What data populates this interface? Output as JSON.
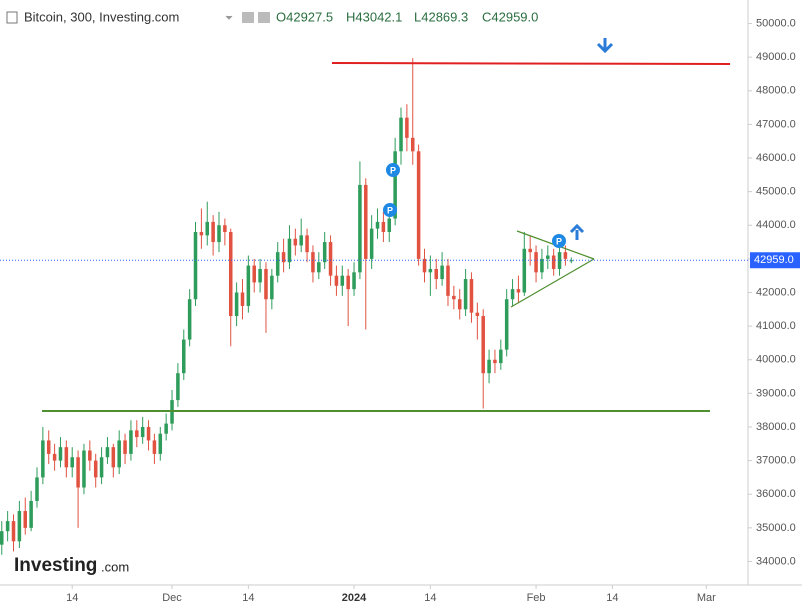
{
  "chart_data": {
    "type": "candlestick",
    "title": "Bitcoin, 300, Investing.com",
    "ohlc_labels": [
      "O42927.5",
      "H43042.1",
      "L42869.3",
      "C42959.0"
    ],
    "brand": [
      "Investing",
      ".com"
    ],
    "marker_labels": [
      "P",
      "P",
      "P"
    ],
    "up_color": "#2e9c5b",
    "down_color": "#e15241",
    "last_price": {
      "value": 42959.0,
      "label": "42959.0"
    },
    "xlim": [
      0.7,
      128.1
    ],
    "xticks": [
      {
        "value": 13,
        "label": "14"
      },
      {
        "value": 30,
        "label": "Dec"
      },
      {
        "value": 43,
        "label": "14"
      },
      {
        "value": 61,
        "label": "2024"
      },
      {
        "value": 74,
        "label": "14"
      },
      {
        "value": 92,
        "label": "Feb"
      },
      {
        "value": 105,
        "label": "14"
      },
      {
        "value": 121,
        "label": "Mar"
      }
    ],
    "ylim": [
      33300,
      50700
    ],
    "yticks": [
      {
        "value": 34000,
        "label": "34000.0"
      },
      {
        "value": 35000,
        "label": "35000.0"
      },
      {
        "value": 36000,
        "label": "36000.0"
      },
      {
        "value": 37000,
        "label": "37000.0"
      },
      {
        "value": 38000,
        "label": "38000.0"
      },
      {
        "value": 39000,
        "label": "39000.0"
      },
      {
        "value": 40000,
        "label": "40000.0"
      },
      {
        "value": 41000,
        "label": "41000.0"
      },
      {
        "value": 42000,
        "label": "42000.0"
      },
      {
        "value": 43000,
        "label": "43000.0"
      },
      {
        "value": 44000,
        "label": "44000.0"
      },
      {
        "value": 45000,
        "label": "45000.0"
      },
      {
        "value": 46000,
        "label": "46000.0"
      },
      {
        "value": 47000,
        "label": "47000.0"
      },
      {
        "value": 48000,
        "label": "48000.0"
      },
      {
        "value": 49000,
        "label": "49000.0"
      },
      {
        "value": 50000,
        "label": "50000.0"
      }
    ],
    "x": [
      1,
      2,
      3,
      4,
      5,
      6,
      7,
      8,
      9,
      10,
      11,
      12,
      13,
      14,
      15,
      16,
      17,
      18,
      19,
      20,
      21,
      22,
      23,
      24,
      25,
      26,
      27,
      28,
      29,
      30,
      31,
      32,
      33,
      34,
      35,
      36,
      37,
      38,
      39,
      40,
      41,
      42,
      43,
      44,
      45,
      46,
      47,
      48,
      49,
      50,
      51,
      52,
      53,
      54,
      55,
      56,
      57,
      58,
      59,
      60,
      61,
      62,
      63,
      64,
      65,
      66,
      67,
      68,
      69,
      70,
      71,
      72,
      73,
      74,
      75,
      76,
      77,
      78,
      79,
      80,
      81,
      82,
      83,
      84,
      85,
      86,
      87,
      88,
      89,
      90,
      91,
      92,
      93,
      94,
      95,
      96,
      97,
      98
    ],
    "open": [
      34500,
      34900,
      35200,
      34600,
      35500,
      35000,
      35800,
      36500,
      37600,
      37200,
      37000,
      37400,
      36800,
      37100,
      36200,
      37300,
      37000,
      36500,
      37100,
      37400,
      36800,
      37600,
      37200,
      37900,
      37700,
      38000,
      37600,
      37200,
      37800,
      38100,
      38800,
      39600,
      40600,
      41800,
      43800,
      43700,
      44100,
      43500,
      44000,
      43800,
      41300,
      42000,
      41600,
      42800,
      42300,
      42700,
      41800,
      42500,
      43200,
      42900,
      43600,
      43400,
      43700,
      43200,
      42600,
      42900,
      43500,
      42500,
      42200,
      42500,
      42100,
      42600,
      45200,
      43000,
      43900,
      44100,
      43800,
      44200,
      46200,
      47200,
      46600,
      46200,
      43000,
      42600,
      42700,
      42400,
      42800,
      41900,
      41800,
      41500,
      42400,
      41400,
      41300,
      39600,
      40000,
      39900,
      40300,
      41800,
      42100,
      42000,
      43300,
      43200,
      42600,
      43000,
      43100,
      42700,
      43200,
      42927.5
    ],
    "high": [
      35200,
      35500,
      35400,
      35800,
      35900,
      36100,
      36800,
      38000,
      37900,
      37500,
      37700,
      37600,
      37400,
      37300,
      37500,
      37600,
      37200,
      37400,
      37700,
      37500,
      37900,
      37800,
      38200,
      38200,
      38300,
      38200,
      37800,
      38000,
      38400,
      39100,
      39900,
      40900,
      42100,
      44100,
      44500,
      44700,
      44300,
      44400,
      44200,
      43900,
      42300,
      42400,
      43100,
      43000,
      43000,
      42900,
      42700,
      43500,
      43600,
      44000,
      43900,
      44200,
      43900,
      43400,
      43200,
      43800,
      43700,
      42800,
      42800,
      42700,
      42900,
      45900,
      45400,
      44300,
      44500,
      44400,
      44600,
      46600,
      47500,
      47600,
      48970,
      46400,
      43300,
      43100,
      43000,
      43200,
      43000,
      42200,
      42100,
      42700,
      42600,
      41700,
      41500,
      40300,
      40300,
      40600,
      42100,
      42400,
      42500,
      43800,
      43700,
      43400,
      43300,
      43400,
      43300,
      43500,
      43400,
      43042.1
    ],
    "low": [
      34200,
      34600,
      34300,
      34400,
      34800,
      34900,
      35600,
      36300,
      36900,
      36700,
      36800,
      36500,
      36500,
      35000,
      36000,
      36700,
      36200,
      36300,
      36900,
      36500,
      36600,
      36900,
      37000,
      37400,
      37500,
      37300,
      36900,
      37000,
      37600,
      37900,
      38600,
      39400,
      40400,
      41600,
      43300,
      43400,
      43100,
      43200,
      43400,
      40400,
      41000,
      41200,
      41400,
      42000,
      42000,
      40800,
      41500,
      42300,
      42600,
      42700,
      43100,
      43200,
      42900,
      42300,
      42400,
      42700,
      42200,
      41900,
      41900,
      41000,
      41900,
      42400,
      40900,
      42700,
      43600,
      43500,
      43500,
      44000,
      45800,
      46200,
      45800,
      42800,
      42300,
      41900,
      42100,
      42200,
      41600,
      41500,
      41200,
      41300,
      41100,
      40600,
      38550,
      39300,
      39600,
      39700,
      40100,
      41600,
      41700,
      41900,
      42800,
      42300,
      42400,
      42700,
      42500,
      42500,
      42800,
      42869.3
    ],
    "close": [
      34900,
      35200,
      34600,
      35500,
      35000,
      35800,
      36500,
      37600,
      37200,
      37000,
      37400,
      36800,
      37100,
      36200,
      37300,
      37000,
      36500,
      37100,
      37400,
      36800,
      37600,
      37200,
      37900,
      37700,
      38000,
      37600,
      37200,
      37800,
      38100,
      38800,
      39600,
      40600,
      41800,
      43800,
      43700,
      44100,
      43500,
      44000,
      43800,
      41300,
      42000,
      41600,
      42800,
      42300,
      42700,
      41800,
      42500,
      43200,
      42900,
      43600,
      43400,
      43700,
      43200,
      42600,
      42900,
      43500,
      42500,
      42200,
      42500,
      42100,
      42600,
      45200,
      43000,
      43900,
      44100,
      43800,
      44200,
      46200,
      47200,
      46600,
      46200,
      43000,
      42600,
      42700,
      42400,
      42800,
      41900,
      41800,
      41500,
      42400,
      41400,
      41300,
      39600,
      40000,
      39900,
      40300,
      41800,
      42100,
      42000,
      43300,
      43200,
      42600,
      43000,
      43100,
      42700,
      43200,
      43000,
      42959.0
    ]
  }
}
